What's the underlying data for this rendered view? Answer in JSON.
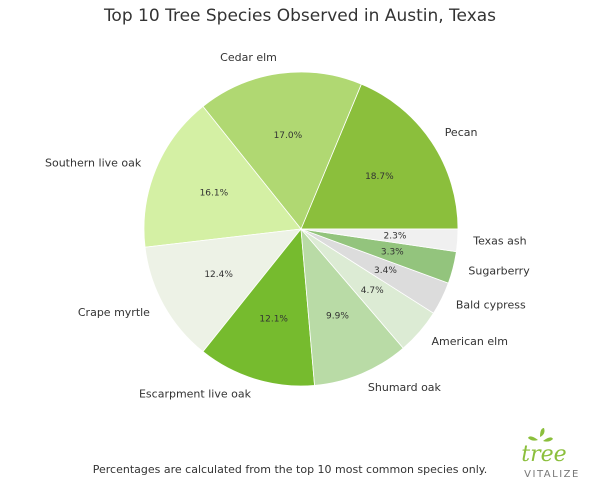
{
  "chart_data": {
    "type": "pie",
    "title": "Top 10 Tree Species Observed in Austin, Texas",
    "categories": [
      "Pecan",
      "Cedar elm",
      "Southern live oak",
      "Crape myrtle",
      "Escarpment live oak",
      "Shumard oak",
      "American elm",
      "Bald cypress",
      "Sugarberry",
      "Texas ash"
    ],
    "values": [
      18.7,
      17.0,
      16.1,
      12.4,
      12.1,
      9.9,
      4.7,
      3.4,
      3.3,
      2.3
    ],
    "value_labels": [
      "18.7%",
      "17.0%",
      "16.1%",
      "12.4%",
      "12.1%",
      "9.9%",
      "4.7%",
      "3.4%",
      "3.3%",
      "2.3%"
    ],
    "colors": [
      "#8bbf3c",
      "#b0d872",
      "#d4f0a4",
      "#edf2e6",
      "#76bb2e",
      "#b9dba6",
      "#dcebd4",
      "#dcdcdc",
      "#93c47d",
      "#f0f0f0"
    ],
    "footnote": "Percentages are calculated from the top 10 most common species only.",
    "logo": {
      "name": "tree",
      "tagline": "VITALIZE"
    }
  }
}
